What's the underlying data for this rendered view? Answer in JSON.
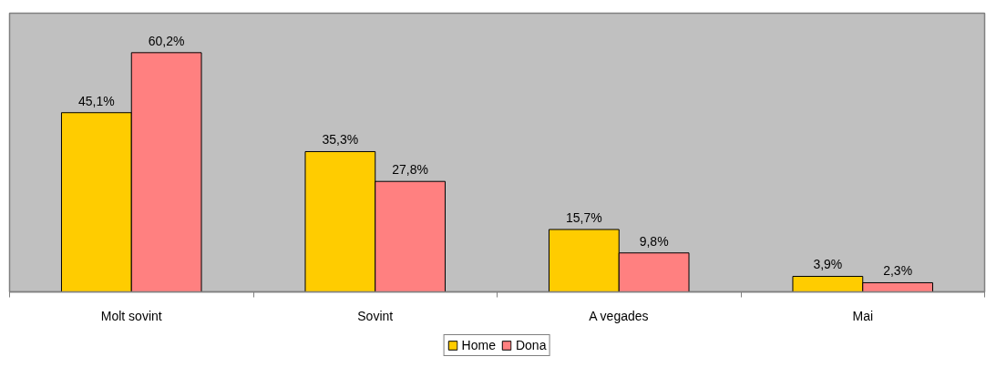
{
  "chart_data": {
    "type": "bar",
    "categories": [
      "Molt sovint",
      "Sovint",
      "A vegades",
      "Mai"
    ],
    "series": [
      {
        "name": "Home",
        "color": "#ffcc00",
        "values": [
          45.1,
          35.3,
          15.7,
          3.9
        ],
        "value_labels": [
          "45,1%",
          "35,3%",
          "15,7%",
          "3,9%"
        ]
      },
      {
        "name": "Dona",
        "color": "#ff8080",
        "values": [
          60.2,
          27.8,
          9.8,
          2.3
        ],
        "value_labels": [
          "60,2%",
          "27,8%",
          "9,8%",
          "2,3%"
        ]
      }
    ],
    "tick_labels": "x",
    "legend": "bottom"
  }
}
